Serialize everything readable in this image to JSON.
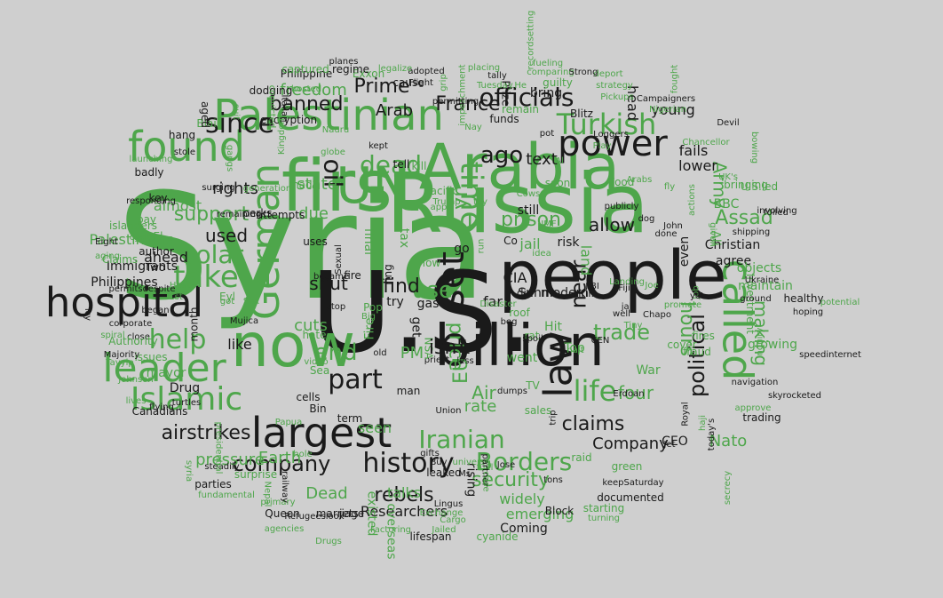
{
  "palette": {
    "green": "#4ea64b",
    "black": "#1a1a1a",
    "background": "#cfcfcf"
  },
  "words": [
    {
      "t": "Syria",
      "c": "green"
    },
    {
      "t": "U.S.",
      "c": "black"
    },
    {
      "t": "Russia",
      "c": "green"
    },
    {
      "t": "people",
      "c": "black"
    },
    {
      "t": "first",
      "c": "green"
    },
    {
      "t": "Arabia",
      "c": "green"
    },
    {
      "t": "billion",
      "c": "black"
    },
    {
      "t": "now",
      "c": "green"
    },
    {
      "t": "largest",
      "c": "black"
    },
    {
      "t": "Palestinian",
      "c": "green"
    },
    {
      "t": "found",
      "c": "green"
    },
    {
      "t": "leader",
      "c": "green"
    },
    {
      "t": "German",
      "c": "green"
    },
    {
      "t": "hospital",
      "c": "black"
    },
    {
      "t": "power",
      "c": "black"
    },
    {
      "t": "UN",
      "c": "green"
    },
    {
      "t": "called",
      "c": "green"
    },
    {
      "t": "law",
      "c": "black"
    },
    {
      "t": "Islamic",
      "c": "green"
    },
    {
      "t": "history",
      "c": "black"
    },
    {
      "t": "time",
      "c": "green"
    },
    {
      "t": "set",
      "c": "black"
    },
    {
      "t": "since",
      "c": "black"
    },
    {
      "t": "Turkish",
      "c": "green"
    },
    {
      "t": "officials",
      "c": "black"
    },
    {
      "t": "take",
      "c": "green"
    },
    {
      "t": "help",
      "c": "green"
    },
    {
      "t": "part",
      "c": "black"
    },
    {
      "t": "life",
      "c": "green"
    },
    {
      "t": "Borders",
      "c": "green"
    },
    {
      "t": "company",
      "c": "black"
    },
    {
      "t": "Iranian",
      "c": "green"
    },
    {
      "t": "ago",
      "c": "black"
    },
    {
      "t": "dead",
      "c": "green"
    },
    {
      "t": "banned",
      "c": "black"
    },
    {
      "t": "France",
      "c": "black"
    },
    {
      "t": "solar",
      "c": "green"
    },
    {
      "t": "airstrikes",
      "c": "black"
    },
    {
      "t": "trade",
      "c": "green"
    },
    {
      "t": "claims",
      "c": "black"
    },
    {
      "t": "political",
      "c": "black"
    },
    {
      "t": "security",
      "c": "green"
    },
    {
      "t": "rebels",
      "c": "black"
    },
    {
      "t": "end",
      "c": "green"
    },
    {
      "t": "use",
      "c": "green"
    },
    {
      "t": "prison",
      "c": "green"
    },
    {
      "t": "find",
      "c": "black"
    },
    {
      "t": "support",
      "c": "green"
    },
    {
      "t": "used",
      "c": "black"
    },
    {
      "t": "hours",
      "c": "green"
    },
    {
      "t": "making",
      "c": "green"
    },
    {
      "t": "four",
      "c": "green"
    },
    {
      "t": "oil",
      "c": "black"
    },
    {
      "t": "near",
      "c": "black"
    },
    {
      "t": "price",
      "c": "green"
    },
    {
      "t": "Prime",
      "c": "black"
    },
    {
      "t": "Assad",
      "c": "green"
    },
    {
      "t": "Army",
      "c": "green"
    },
    {
      "t": "Nato",
      "c": "green"
    },
    {
      "t": "Company",
      "c": "black"
    },
    {
      "t": "Researchers",
      "c": "black"
    },
    {
      "t": "Arab",
      "c": "black"
    },
    {
      "t": "text",
      "c": "black"
    },
    {
      "t": "allow",
      "c": "black"
    },
    {
      "t": "shut",
      "c": "black"
    },
    {
      "t": "freedom",
      "c": "green"
    },
    {
      "t": "rights",
      "c": "black"
    },
    {
      "t": "due",
      "c": "green"
    },
    {
      "t": "fails",
      "c": "black"
    },
    {
      "t": "lower",
      "c": "black"
    },
    {
      "t": "young",
      "c": "black"
    },
    {
      "t": "head",
      "c": "black"
    },
    {
      "t": "state",
      "c": "green"
    },
    {
      "t": "almost",
      "c": "green"
    },
    {
      "t": "Palestinians",
      "c": "green"
    },
    {
      "t": "ahead",
      "c": "black"
    },
    {
      "t": "like",
      "c": "black"
    },
    {
      "t": "cuts",
      "c": "green"
    },
    {
      "t": "PM",
      "c": "green"
    },
    {
      "t": "Air",
      "c": "green"
    },
    {
      "t": "rate",
      "c": "green"
    },
    {
      "t": "EU",
      "c": "green"
    },
    {
      "t": "CIA",
      "c": "black"
    },
    {
      "t": "far",
      "c": "black"
    },
    {
      "t": "seen",
      "c": "green"
    },
    {
      "t": "talks",
      "c": "green"
    },
    {
      "t": "emerging",
      "c": "green"
    },
    {
      "t": "widely",
      "c": "green"
    },
    {
      "t": "Coming",
      "c": "black"
    },
    {
      "t": "pressure",
      "c": "green"
    },
    {
      "t": "Earth",
      "c": "green"
    },
    {
      "t": "Dead",
      "c": "green"
    },
    {
      "t": "Philippines",
      "c": "black"
    },
    {
      "t": "Immigrants",
      "c": "black"
    },
    {
      "t": "BBC",
      "c": "green"
    },
    {
      "t": "Christian",
      "c": "black"
    },
    {
      "t": "agree",
      "c": "black"
    },
    {
      "t": "objects",
      "c": "green"
    },
    {
      "t": "maintain",
      "c": "green"
    },
    {
      "t": "growing",
      "c": "green"
    },
    {
      "t": "Investment",
      "c": "green"
    },
    {
      "t": "fires",
      "c": "green"
    },
    {
      "t": "fraud",
      "c": "green"
    },
    {
      "t": "War",
      "c": "green"
    },
    {
      "t": "CEO",
      "c": "black"
    },
    {
      "t": "green",
      "c": "green"
    },
    {
      "t": "Top",
      "c": "green"
    },
    {
      "t": "went",
      "c": "green"
    },
    {
      "t": "TV",
      "c": "green"
    },
    {
      "t": "sales",
      "c": "green"
    },
    {
      "t": "raid",
      "c": "green"
    },
    {
      "t": "rising",
      "c": "black"
    },
    {
      "t": "overseas",
      "c": "green"
    },
    {
      "t": "existed",
      "c": "green"
    },
    {
      "t": "Drug",
      "c": "black"
    },
    {
      "t": "Canadians",
      "c": "black"
    },
    {
      "t": "Ali",
      "c": "green"
    },
    {
      "t": "even",
      "c": "black"
    },
    {
      "t": "Prize",
      "c": "black"
    },
    {
      "t": "Exxon",
      "c": "green"
    },
    {
      "t": "Philippine",
      "c": "black"
    },
    {
      "t": "captured",
      "c": "green"
    },
    {
      "t": "regime",
      "c": "black"
    },
    {
      "t": "cause",
      "c": "black"
    },
    {
      "t": "bring",
      "c": "black"
    },
    {
      "t": "guilty",
      "c": "green"
    },
    {
      "t": "funds",
      "c": "black"
    },
    {
      "t": "remain",
      "c": "green"
    },
    {
      "t": "Blitz",
      "c": "black"
    },
    {
      "t": "kill",
      "c": "green"
    },
    {
      "t": "tell",
      "c": "black"
    },
    {
      "t": "jail",
      "c": "green"
    },
    {
      "t": "still",
      "c": "black"
    },
    {
      "t": "risk",
      "c": "black"
    },
    {
      "t": "land",
      "c": "green"
    },
    {
      "t": "Kill",
      "c": "black"
    },
    {
      "t": "Food",
      "c": "green"
    },
    {
      "t": "soon",
      "c": "green"
    },
    {
      "t": "final",
      "c": "green"
    },
    {
      "t": "tax",
      "c": "green"
    },
    {
      "t": "ban",
      "c": "green"
    },
    {
      "t": "fire",
      "c": "black"
    },
    {
      "t": "ring",
      "c": "black"
    },
    {
      "t": "go",
      "c": "black"
    },
    {
      "t": "try",
      "c": "black"
    },
    {
      "t": "gas",
      "c": "black"
    },
    {
      "t": "get",
      "c": "black"
    },
    {
      "t": "Fire",
      "c": "green"
    },
    {
      "t": "roof",
      "c": "green"
    },
    {
      "t": "rat",
      "c": "green"
    },
    {
      "t": "Hit",
      "c": "green"
    },
    {
      "t": "halt",
      "c": "green"
    },
    {
      "t": "CEN",
      "c": "black"
    },
    {
      "t": "FBI",
      "c": "black"
    },
    {
      "t": "die",
      "c": "black"
    },
    {
      "t": "attempts",
      "c": "black"
    },
    {
      "t": "pay",
      "c": "green"
    },
    {
      "t": "key",
      "c": "black"
    },
    {
      "t": "El",
      "c": "green"
    },
    {
      "t": "made",
      "c": "green"
    },
    {
      "t": "uses",
      "c": "black"
    },
    {
      "t": "became",
      "c": "black"
    },
    {
      "t": "Sexual",
      "c": "black"
    },
    {
      "t": "Two",
      "c": "black"
    },
    {
      "t": "author",
      "c": "black"
    },
    {
      "t": "began",
      "c": "black"
    },
    {
      "t": "corporate",
      "c": "black"
    },
    {
      "t": "close",
      "c": "black"
    },
    {
      "t": "mayor",
      "c": "green"
    },
    {
      "t": "issues",
      "c": "green"
    },
    {
      "t": "Authority",
      "c": "green"
    },
    {
      "t": "Claims",
      "c": "green"
    },
    {
      "t": "month",
      "c": "black"
    },
    {
      "t": "hate",
      "c": "green"
    },
    {
      "t": "Sea",
      "c": "green"
    },
    {
      "t": "Bin",
      "c": "black"
    },
    {
      "t": "cells",
      "c": "black"
    },
    {
      "t": "term",
      "c": "black"
    },
    {
      "t": "turtles",
      "c": "black"
    },
    {
      "t": "flying",
      "c": "black"
    },
    {
      "t": "Queen",
      "c": "black"
    },
    {
      "t": "marriage",
      "c": "black"
    },
    {
      "t": "jets",
      "c": "black"
    },
    {
      "t": "Lingus",
      "c": "black"
    },
    {
      "t": "Cargo",
      "c": "green"
    },
    {
      "t": "lifespan",
      "c": "black"
    },
    {
      "t": "cyanide",
      "c": "green"
    },
    {
      "t": "Block",
      "c": "black"
    },
    {
      "t": "starting",
      "c": "green"
    },
    {
      "t": "turning",
      "c": "green"
    },
    {
      "t": "documented",
      "c": "black"
    },
    {
      "t": "keepSaturday",
      "c": "black"
    },
    {
      "t": "tons",
      "c": "black"
    },
    {
      "t": "leaked",
      "c": "black"
    },
    {
      "t": "fuel",
      "c": "green"
    },
    {
      "t": "universe",
      "c": "green"
    },
    {
      "t": "Ms",
      "c": "black"
    },
    {
      "t": "Union",
      "c": "black"
    },
    {
      "t": "less",
      "c": "black"
    },
    {
      "t": "priest",
      "c": "black"
    },
    {
      "t": "old",
      "c": "black"
    },
    {
      "t": "NSA",
      "c": "green"
    },
    {
      "t": "man",
      "c": "black"
    },
    {
      "t": "cover",
      "c": "green"
    },
    {
      "t": "Erdoan",
      "c": "black"
    },
    {
      "t": "Jet",
      "c": "black"
    },
    {
      "t": "trading",
      "c": "black"
    },
    {
      "t": "approve",
      "c": "green"
    },
    {
      "t": "skyrocketed",
      "c": "black"
    },
    {
      "t": "speedinternet",
      "c": "black"
    },
    {
      "t": "navigation",
      "c": "black"
    },
    {
      "t": "hoping",
      "c": "black"
    },
    {
      "t": "healthy",
      "c": "black"
    },
    {
      "t": "Ukraine",
      "c": "black"
    },
    {
      "t": "U.S.led",
      "c": "green"
    },
    {
      "t": "involving",
      "c": "black"
    },
    {
      "t": "bringing",
      "c": "green"
    },
    {
      "t": "Chancellor",
      "c": "green"
    },
    {
      "t": "Devil",
      "c": "black"
    },
    {
      "t": "Campaigners",
      "c": "black"
    },
    {
      "t": "Nigerian",
      "c": "green"
    },
    {
      "t": "Pickups",
      "c": "green"
    },
    {
      "t": "strategy",
      "c": "green"
    },
    {
      "t": "deport",
      "c": "green"
    },
    {
      "t": "fueling",
      "c": "green"
    },
    {
      "t": "comparing",
      "c": "green"
    },
    {
      "t": "Strong",
      "c": "black"
    },
    {
      "t": "placing",
      "c": "green"
    },
    {
      "t": "tally",
      "c": "black"
    },
    {
      "t": "Tuesday.He",
      "c": "green"
    },
    {
      "t": "adopted",
      "c": "black"
    },
    {
      "t": "legalize",
      "c": "green"
    },
    {
      "t": "Flight",
      "c": "black"
    },
    {
      "t": "planes",
      "c": "black"
    },
    {
      "t": "encryption",
      "c": "black"
    },
    {
      "t": "dodging",
      "c": "black"
    },
    {
      "t": "suit",
      "c": "green"
    },
    {
      "t": "hosted",
      "c": "green"
    },
    {
      "t": "convicted",
      "c": "green"
    },
    {
      "t": "Nauru",
      "c": "green"
    },
    {
      "t": "Italian",
      "c": "black"
    },
    {
      "t": "Blair",
      "c": "green"
    },
    {
      "t": "hang",
      "c": "black"
    },
    {
      "t": "stole",
      "c": "black"
    },
    {
      "t": "launching",
      "c": "green"
    },
    {
      "t": "badly",
      "c": "black"
    },
    {
      "t": "responding",
      "c": "black"
    },
    {
      "t": "islanders",
      "c": "green"
    },
    {
      "t": "cyclone",
      "c": "green"
    },
    {
      "t": "Eight",
      "c": "black"
    },
    {
      "t": "aging",
      "c": "green"
    },
    {
      "t": "permitsdespite",
      "c": "black"
    },
    {
      "t": "Majority",
      "c": "black"
    },
    {
      "t": "Tayyip",
      "c": "green"
    },
    {
      "t": "Johnson",
      "c": "green"
    },
    {
      "t": "steadily",
      "c": "black"
    },
    {
      "t": "presidential",
      "c": "green"
    },
    {
      "t": "parties",
      "c": "black"
    },
    {
      "t": "surprise",
      "c": "green"
    },
    {
      "t": "fundamental",
      "c": "green"
    },
    {
      "t": "agencies",
      "c": "green"
    },
    {
      "t": "Refugeeslook",
      "c": "black"
    },
    {
      "t": "primary",
      "c": "green"
    },
    {
      "t": "Factoring",
      "c": "green"
    },
    {
      "t": "Jailed",
      "c": "green"
    },
    {
      "t": "Exchange",
      "c": "green"
    },
    {
      "t": "Papua",
      "c": "green"
    },
    {
      "t": "globe",
      "c": "green"
    },
    {
      "t": "Trump",
      "c": "green"
    },
    {
      "t": "Play",
      "c": "green"
    },
    {
      "t": "Loggers",
      "c": "black"
    },
    {
      "t": "Arabs",
      "c": "green"
    },
    {
      "t": "UK's",
      "c": "green"
    },
    {
      "t": "done",
      "c": "black"
    },
    {
      "t": "Landing",
      "c": "green"
    },
    {
      "t": "John",
      "c": "black"
    },
    {
      "t": "Co",
      "c": "black"
    },
    {
      "t": "idea",
      "c": "green"
    },
    {
      "t": "low",
      "c": "green"
    },
    {
      "t": "app",
      "c": "green"
    },
    {
      "t": "IMF",
      "c": "green"
    },
    {
      "t": "Cows",
      "c": "green"
    },
    {
      "t": "well",
      "c": "black"
    },
    {
      "t": "Fiji",
      "c": "black"
    },
    {
      "t": "Joe",
      "c": "green"
    },
    {
      "t": "promote",
      "c": "green"
    },
    {
      "t": "Job",
      "c": "green"
    },
    {
      "t": "Chapo",
      "c": "black"
    },
    {
      "t": "Tiny",
      "c": "green"
    },
    {
      "t": "yet",
      "c": "black"
    },
    {
      "t": "spoil",
      "c": "black"
    },
    {
      "t": "beg",
      "c": "black"
    },
    {
      "t": "Pop",
      "c": "green"
    },
    {
      "t": "atop",
      "c": "black"
    },
    {
      "t": "Big",
      "c": "green"
    },
    {
      "t": "Sex",
      "c": "green"
    },
    {
      "t": "got",
      "c": "green"
    },
    {
      "t": "Head",
      "c": "green"
    },
    {
      "t": "1st",
      "c": "green"
    },
    {
      "t": "Mujica",
      "c": "black"
    },
    {
      "t": "icy",
      "c": "black"
    },
    {
      "t": "spiral",
      "c": "green"
    },
    {
      "t": "surging",
      "c": "black"
    },
    {
      "t": "generation",
      "c": "green"
    },
    {
      "t": "kept",
      "c": "black"
    },
    {
      "t": "pot",
      "c": "black"
    },
    {
      "t": "trip",
      "c": "black"
    },
    {
      "t": "dumps",
      "c": "black"
    },
    {
      "t": "gifts",
      "c": "black"
    },
    {
      "t": "Buy",
      "c": "black"
    },
    {
      "t": "partner",
      "c": "black"
    },
    {
      "t": "Jose",
      "c": "black"
    },
    {
      "t": "Royal",
      "c": "black"
    },
    {
      "t": "haji",
      "c": "green"
    },
    {
      "t": "today's",
      "c": "black"
    },
    {
      "t": "secrecy",
      "c": "green"
    },
    {
      "t": "Inquiry",
      "c": "green"
    },
    {
      "t": "shipping",
      "c": "black"
    },
    {
      "t": "actions",
      "c": "green"
    },
    {
      "t": "given",
      "c": "green"
    },
    {
      "t": "foiled",
      "c": "black"
    },
    {
      "t": "Disaster",
      "c": "green"
    },
    {
      "t": "recordsetting",
      "c": "green"
    },
    {
      "t": "grip",
      "c": "green"
    },
    {
      "t": "impeachment",
      "c": "green"
    },
    {
      "t": "permitting",
      "c": "black"
    },
    {
      "t": "Sunni",
      "c": "black"
    },
    {
      "t": "modern",
      "c": "black"
    },
    {
      "t": "case",
      "c": "green"
    },
    {
      "t": "yr",
      "c": "green"
    },
    {
      "t": "isn't",
      "c": "black"
    },
    {
      "t": "Pacific",
      "c": "green"
    },
    {
      "t": "run",
      "c": "green"
    },
    {
      "t": "Kingdom",
      "c": "green"
    },
    {
      "t": "gangs",
      "c": "green"
    },
    {
      "t": "aged",
      "c": "black"
    },
    {
      "t": "Drugs",
      "c": "green"
    },
    {
      "t": "Nepal",
      "c": "green"
    },
    {
      "t": "railway",
      "c": "black"
    },
    {
      "t": "hole",
      "c": "green"
    },
    {
      "t": "video",
      "c": "green"
    },
    {
      "t": "lives",
      "c": "green"
    },
    {
      "t": "syria",
      "c": "green"
    },
    {
      "t": "publicly",
      "c": "black"
    },
    {
      "t": "fought",
      "c": "green"
    },
    {
      "t": "bowing",
      "c": "green"
    },
    {
      "t": "potential",
      "c": "green"
    },
    {
      "t": "ground",
      "c": "black"
    },
    {
      "t": "remaining",
      "c": "black"
    },
    {
      "t": "perks",
      "c": "black"
    },
    {
      "t": "Eyl",
      "c": "green"
    },
    {
      "t": "Al",
      "c": "green"
    },
    {
      "t": "jail",
      "c": "black"
    },
    {
      "t": "fly",
      "c": "green"
    },
    {
      "t": "toy",
      "c": "green"
    },
    {
      "t": "Nay",
      "c": "green"
    },
    {
      "t": "dog",
      "c": "black"
    },
    {
      "t": "poll",
      "c": "green"
    },
    {
      "t": "Amp",
      "c": "green"
    }
  ]
}
